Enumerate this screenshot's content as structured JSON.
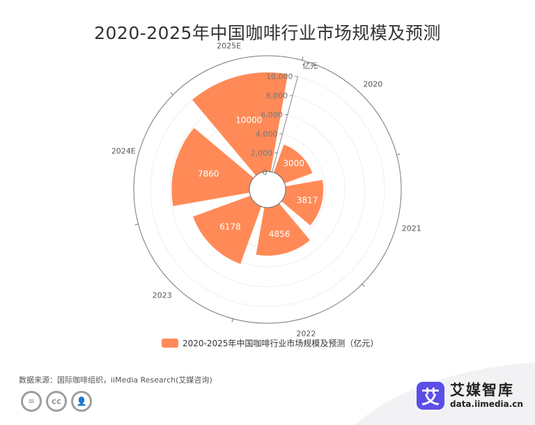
{
  "chart_data": {
    "type": "polar-bar",
    "title": "2020-2025年中国咖啡行业市场规模及预测",
    "unit_label": "亿元",
    "categories": [
      "2020",
      "2021",
      "2022",
      "2023",
      "2024E",
      "2025E"
    ],
    "series": [
      {
        "name": "2020-2025年中国咖啡行业市场规模及预测（亿元）",
        "values": [
          3000,
          3817,
          4856,
          6178,
          7860,
          10000
        ]
      }
    ],
    "radial_axis": {
      "min": 0,
      "max": 10000,
      "ticks": [
        "0",
        "2,000",
        "4,000",
        "6,000",
        "8,000",
        "10,000"
      ]
    },
    "bar_color": "#ff8a57",
    "grid": true,
    "legend_position": "bottom"
  },
  "source_text": "数据来源：国际咖啡组织，iiMedia Research(艾媒咨询)",
  "license_icons": [
    "equal-icon",
    "cc-icon",
    "person-icon"
  ],
  "license_glyphs": [
    "=",
    "cc",
    "👤"
  ],
  "brand": {
    "logo_char": "艾",
    "name": "艾媒智库",
    "url": "data.iimedia.cn",
    "color": "#5b4ee6"
  }
}
